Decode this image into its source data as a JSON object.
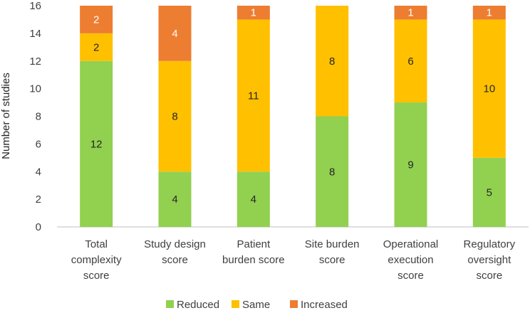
{
  "chart_data": {
    "type": "bar",
    "stacked": true,
    "title": "",
    "xlabel": "",
    "ylabel": "Number of studies",
    "ylim": [
      0,
      16
    ],
    "yticks": [
      0,
      2,
      4,
      6,
      8,
      10,
      12,
      14,
      16
    ],
    "grid": false,
    "legend_position": "bottom",
    "categories": [
      [
        "Total",
        "complexity",
        "score"
      ],
      [
        "Study design",
        "score"
      ],
      [
        "Patient",
        "burden score"
      ],
      [
        "Site burden",
        "score"
      ],
      [
        "Operational",
        "execution",
        "score"
      ],
      [
        "Regulatory",
        "oversight",
        "score"
      ]
    ],
    "series": [
      {
        "name": "Reduced",
        "color": "#92d050",
        "label_color": "#262626",
        "values": [
          12,
          4,
          4,
          8,
          9,
          5
        ]
      },
      {
        "name": "Same",
        "color": "#ffc000",
        "label_color": "#262626",
        "values": [
          2,
          8,
          11,
          8,
          6,
          10
        ]
      },
      {
        "name": "Increased",
        "color": "#ed7d31",
        "label_color": "#ffffff",
        "values": [
          2,
          4,
          1,
          0,
          1,
          1
        ]
      }
    ]
  }
}
